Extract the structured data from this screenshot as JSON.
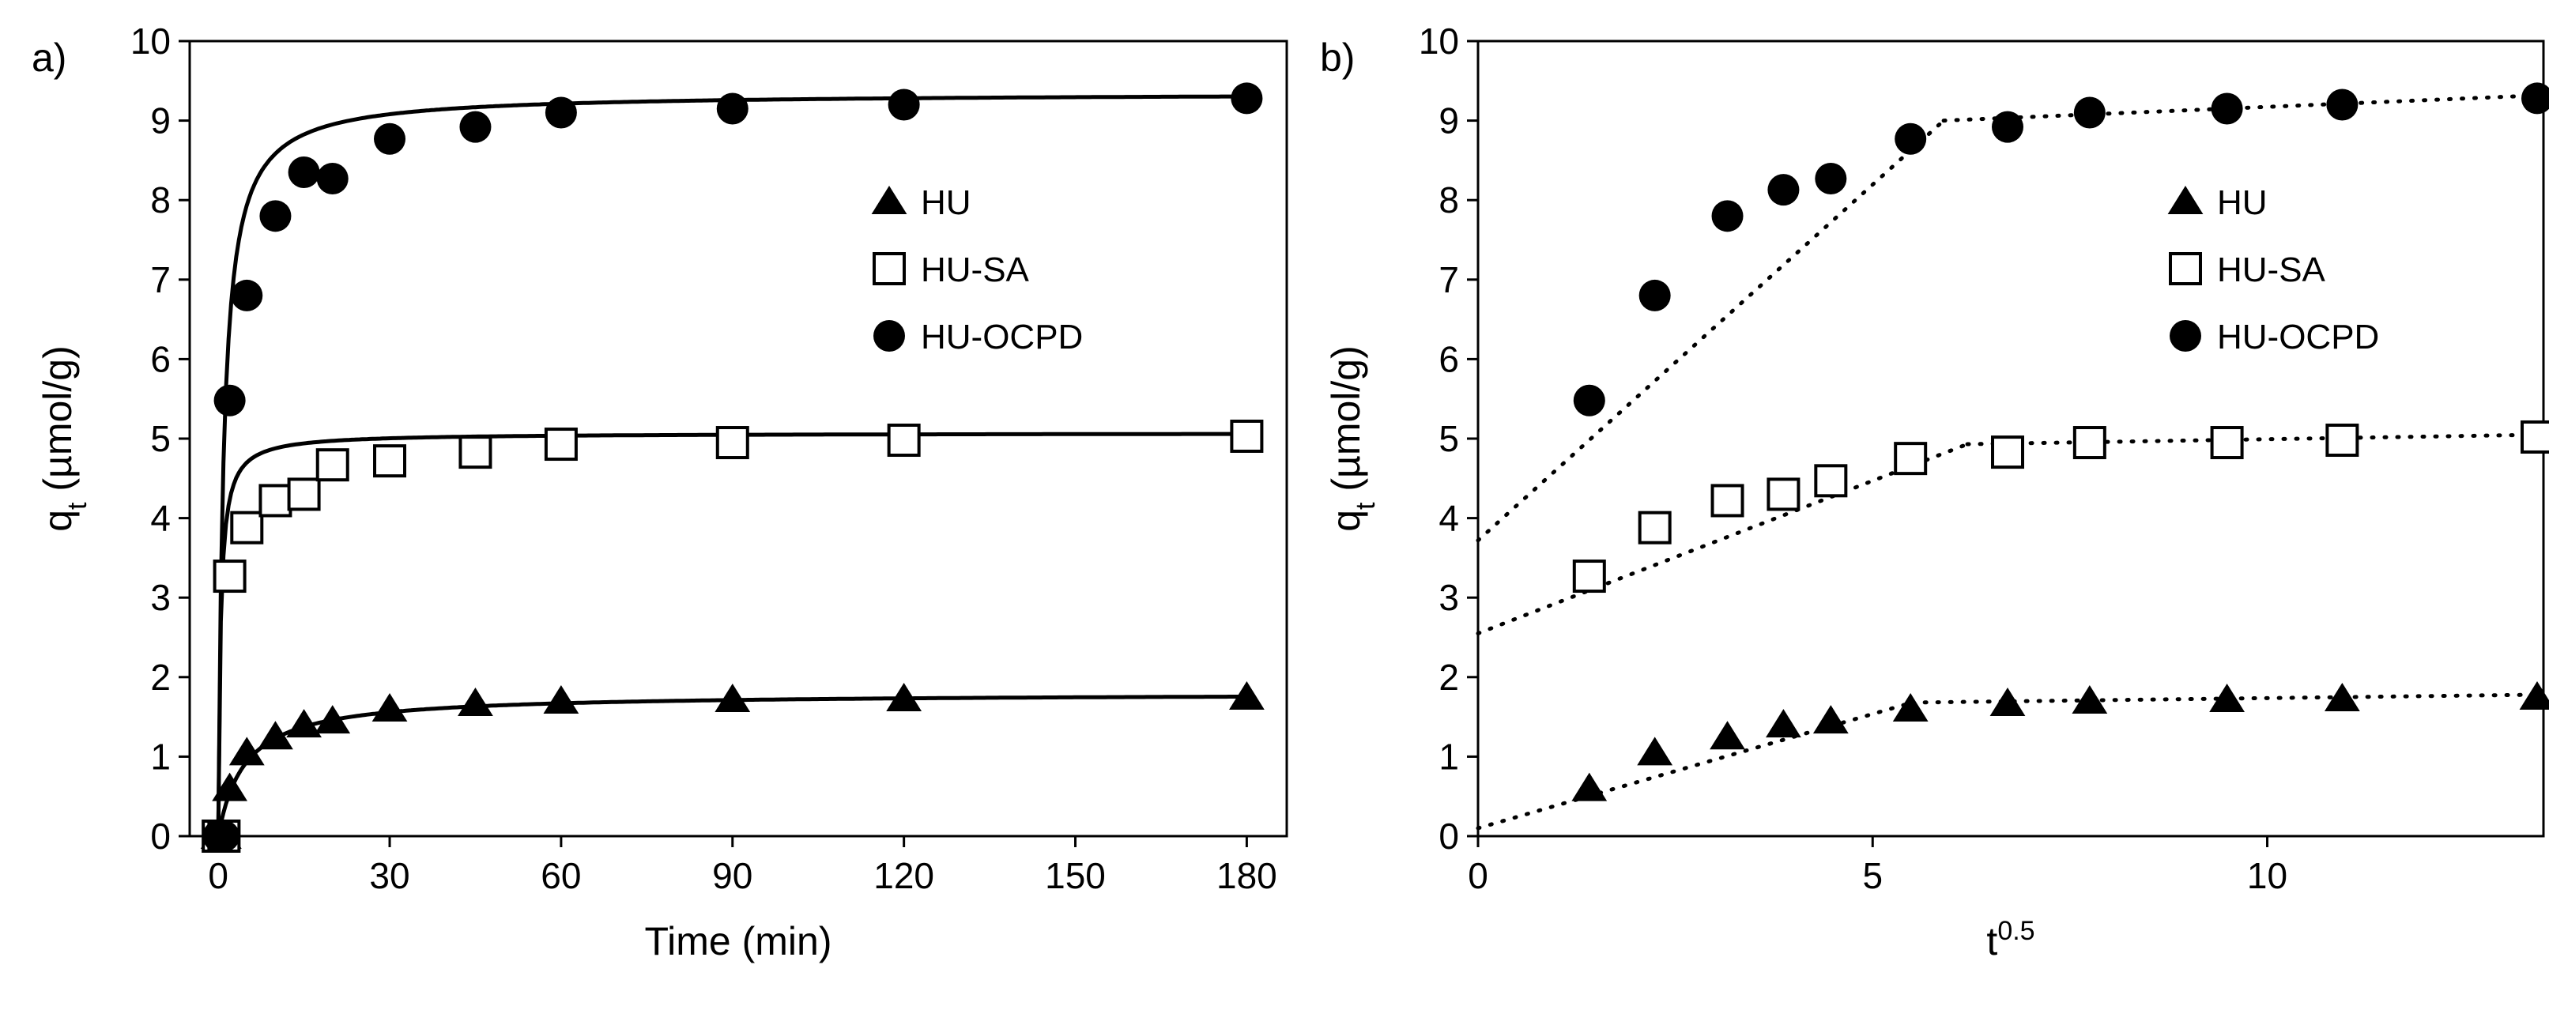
{
  "chart_data": [
    {
      "type": "scatter",
      "panel_label": "a)",
      "xlabel": "Time (min)",
      "ylabel": {
        "main": "q",
        "sub": "t",
        "rest": " (µmol/g)"
      },
      "xlim": [
        -5,
        187
      ],
      "ylim": [
        0,
        10
      ],
      "xticks": [
        0,
        30,
        60,
        90,
        120,
        150,
        180
      ],
      "yticks": [
        0,
        1,
        2,
        3,
        4,
        5,
        6,
        7,
        8,
        9,
        10
      ],
      "fit_line_style": "solid",
      "legend_position": "center-right",
      "series": [
        {
          "name": "HU",
          "marker": "triangle",
          "x": [
            0,
            1,
            2,
            5,
            10,
            15,
            20,
            30,
            45,
            60,
            90,
            120,
            180
          ],
          "y": [
            0,
            0,
            0.6,
            1.05,
            1.25,
            1.4,
            1.45,
            1.6,
            1.67,
            1.7,
            1.72,
            1.73,
            1.75
          ],
          "fit": {
            "qe": 1.8,
            "k": 0.12
          }
        },
        {
          "name": "HU-SA",
          "marker": "square-open",
          "x": [
            0,
            1,
            2,
            5,
            10,
            15,
            20,
            30,
            45,
            60,
            90,
            120,
            180
          ],
          "y": [
            0,
            0,
            3.27,
            3.88,
            4.22,
            4.3,
            4.67,
            4.72,
            4.83,
            4.93,
            4.95,
            4.98,
            5.03
          ],
          "fit": {
            "qe": 5.07,
            "k": 0.5
          }
        },
        {
          "name": "HU-OCPD",
          "marker": "circle",
          "x": [
            0,
            1,
            2,
            5,
            10,
            15,
            20,
            30,
            45,
            60,
            90,
            120,
            180
          ],
          "y": [
            0,
            0,
            5.48,
            6.8,
            7.8,
            8.35,
            8.27,
            8.77,
            8.92,
            9.1,
            9.15,
            9.2,
            9.28
          ],
          "fit": {
            "qe": 9.35,
            "k": 0.12
          }
        }
      ]
    },
    {
      "type": "scatter",
      "panel_label": "b)",
      "xlabel": {
        "main": "t",
        "sup": "0.5"
      },
      "ylabel": {
        "main": "q",
        "sub": "t",
        "rest": " (µmol/g)"
      },
      "xlim": [
        0,
        13.5
      ],
      "ylim": [
        0,
        10
      ],
      "xticks": [
        0,
        5,
        10
      ],
      "yticks": [
        0,
        1,
        2,
        3,
        4,
        5,
        6,
        7,
        8,
        9,
        10
      ],
      "fit_line_style": "dotted",
      "legend_position": "center-right",
      "series": [
        {
          "name": "HU",
          "marker": "triangle",
          "x": [
            1.41,
            2.24,
            3.16,
            3.87,
            4.47,
            5.48,
            6.71,
            7.75,
            9.49,
            10.95,
            13.42
          ],
          "y": [
            0.6,
            1.05,
            1.25,
            1.4,
            1.45,
            1.6,
            1.67,
            1.7,
            1.72,
            1.73,
            1.75
          ],
          "fit_segments": [
            {
              "x": [
                0,
                5.5
              ],
              "y": [
                0.1,
                1.68
              ]
            },
            {
              "x": [
                5.5,
                13.5
              ],
              "y": [
                1.68,
                1.78
              ]
            }
          ]
        },
        {
          "name": "HU-SA",
          "marker": "square-open",
          "x": [
            1.41,
            2.24,
            3.16,
            3.87,
            4.47,
            5.48,
            6.71,
            7.75,
            9.49,
            10.95,
            13.42
          ],
          "y": [
            3.27,
            3.88,
            4.22,
            4.3,
            4.47,
            4.75,
            4.83,
            4.95,
            4.95,
            4.98,
            5.02
          ],
          "fit_segments": [
            {
              "x": [
                0,
                6.2
              ],
              "y": [
                2.55,
                4.93
              ]
            },
            {
              "x": [
                6.2,
                13.5
              ],
              "y": [
                4.93,
                5.05
              ]
            }
          ]
        },
        {
          "name": "HU-OCPD",
          "marker": "circle",
          "x": [
            1.41,
            2.24,
            3.16,
            3.87,
            4.47,
            5.48,
            6.71,
            7.75,
            9.49,
            10.95,
            13.42
          ],
          "y": [
            5.48,
            6.8,
            7.8,
            8.13,
            8.27,
            8.77,
            8.92,
            9.1,
            9.15,
            9.2,
            9.28
          ],
          "fit_segments": [
            {
              "x": [
                0,
                5.9
              ],
              "y": [
                3.72,
                9.0
              ]
            },
            {
              "x": [
                5.9,
                13.5
              ],
              "y": [
                9.0,
                9.32
              ]
            }
          ]
        }
      ]
    }
  ]
}
